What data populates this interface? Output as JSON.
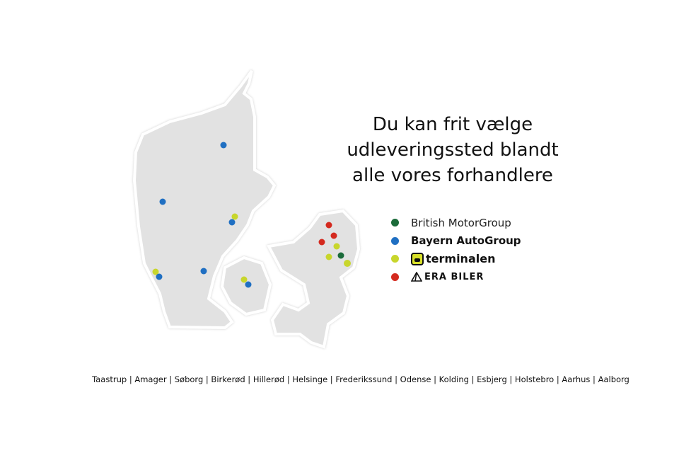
{
  "title": [
    "Du kan frit vælge",
    "udleveringssted blandt",
    "alle vores forhandlere"
  ],
  "legend": [
    {
      "label": "British MotorGroup",
      "color": "#1b6b3a"
    },
    {
      "label": "Bayern AutoGroup",
      "color": "#1f6fc2"
    },
    {
      "label": "terminalen",
      "color": "#c8d62c",
      "icon": "terminalen-logo-icon"
    },
    {
      "label": "ERA BILER",
      "color": "#d42a1f",
      "icon": "era-logo-icon"
    }
  ],
  "cities": "Taastrup | Amager | Søborg | Birkerød | Hillerød | Helsinge | Frederikssund | Odense | Kolding | Esbjerg | Holstebro | Aarhus | Aalborg",
  "map": {
    "regions": [
      "Jylland",
      "Fyn",
      "Sjælland"
    ],
    "land_color": "#e2e2e2"
  }
}
